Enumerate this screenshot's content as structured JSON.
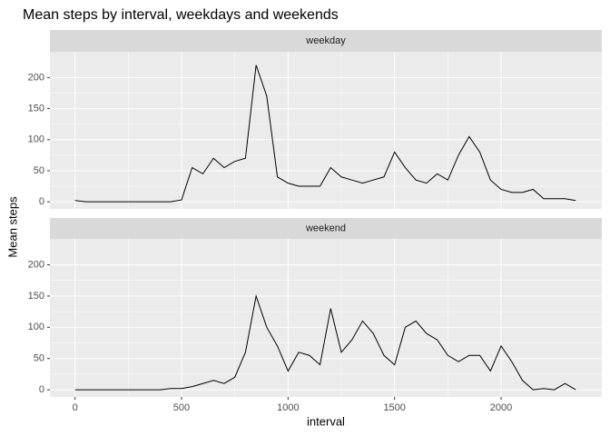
{
  "chart_data": {
    "type": "line",
    "title": "Mean steps by interval, weekdays and weekends",
    "x_label": "interval",
    "y_label": "Mean steps",
    "xlim": [
      -117.75,
      2472.75
    ],
    "ylim": [
      -11.5,
      241.5
    ],
    "xticks": [
      0,
      500,
      1000,
      1500,
      2000
    ],
    "yticks": [
      0,
      50,
      100,
      150,
      200
    ],
    "grid": true,
    "x": [
      0,
      50,
      100,
      150,
      200,
      250,
      300,
      350,
      400,
      450,
      500,
      550,
      600,
      650,
      700,
      750,
      800,
      850,
      900,
      950,
      1000,
      1050,
      1100,
      1150,
      1200,
      1250,
      1300,
      1350,
      1400,
      1450,
      1500,
      1550,
      1600,
      1650,
      1700,
      1750,
      1800,
      1850,
      1900,
      1950,
      2000,
      2050,
      2100,
      2150,
      2200,
      2250,
      2300,
      2350
    ],
    "series": [
      {
        "name": "weekday",
        "color": "#000000",
        "values": [
          2,
          0,
          0,
          0,
          0,
          0,
          0,
          0,
          0,
          0,
          3,
          55,
          45,
          70,
          55,
          65,
          70,
          220,
          170,
          40,
          30,
          25,
          25,
          25,
          55,
          40,
          35,
          30,
          35,
          40,
          80,
          55,
          35,
          30,
          45,
          35,
          75,
          105,
          80,
          35,
          20,
          15,
          15,
          20,
          5,
          5,
          5,
          2
        ]
      },
      {
        "name": "weekend",
        "color": "#000000",
        "values": [
          0,
          0,
          0,
          0,
          0,
          0,
          0,
          0,
          0,
          2,
          2,
          5,
          10,
          15,
          10,
          20,
          60,
          150,
          100,
          70,
          30,
          60,
          55,
          40,
          130,
          60,
          80,
          110,
          90,
          55,
          40,
          100,
          110,
          90,
          80,
          55,
          45,
          55,
          55,
          30,
          70,
          45,
          15,
          0,
          2,
          0,
          10,
          0
        ]
      }
    ]
  }
}
